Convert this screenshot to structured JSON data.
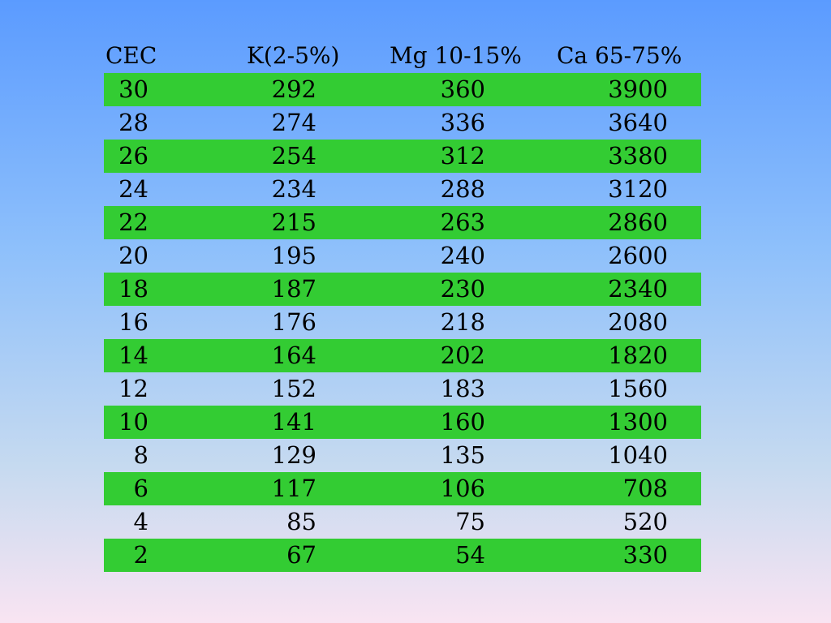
{
  "table": {
    "headers": [
      "CEC",
      "K(2-5%)",
      "Mg 10-15%",
      "Ca 65-75%"
    ],
    "rows": [
      [
        "30",
        "292",
        "360",
        "3900"
      ],
      [
        "28",
        "274",
        "336",
        "3640"
      ],
      [
        "26",
        "254",
        "312",
        "3380"
      ],
      [
        "24",
        "234",
        "288",
        "3120"
      ],
      [
        "22",
        "215",
        "263",
        "2860"
      ],
      [
        "20",
        "195",
        "240",
        "2600"
      ],
      [
        "18",
        "187",
        "230",
        "2340"
      ],
      [
        "16",
        "176",
        "218",
        "2080"
      ],
      [
        "14",
        "164",
        "202",
        "1820"
      ],
      [
        "12",
        "152",
        "183",
        "1560"
      ],
      [
        "10",
        "141",
        "160",
        "1300"
      ],
      [
        "8",
        "129",
        "135",
        "1040"
      ],
      [
        "6",
        "117",
        "106",
        "708"
      ],
      [
        "4",
        "85",
        "75",
        "520"
      ],
      [
        "2",
        "67",
        "54",
        "330"
      ]
    ]
  },
  "colors": {
    "row_highlight": "#33cc33",
    "background_top": "#5b9bff",
    "background_bottom": "#f9e4f2"
  }
}
